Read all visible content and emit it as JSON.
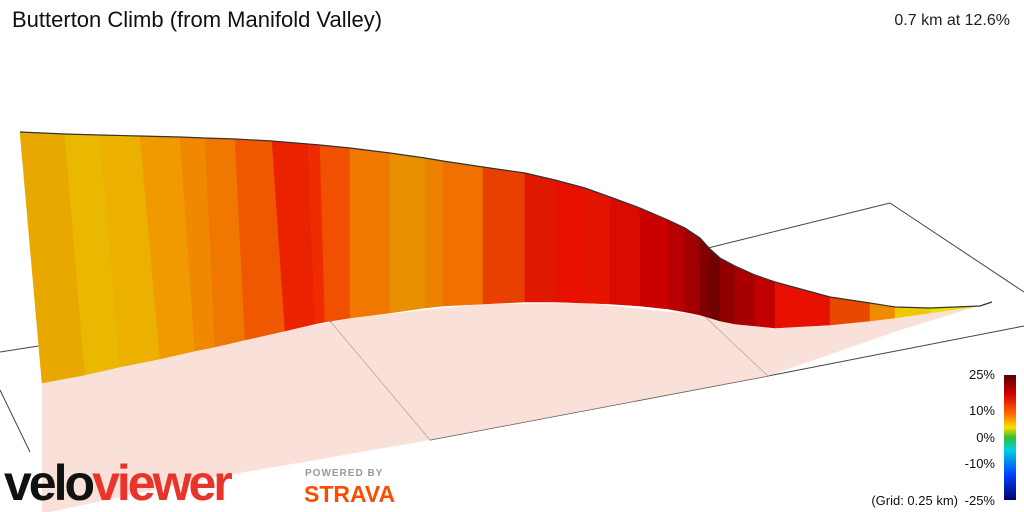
{
  "header": {
    "title": "Butterton Climb (from Manifold Valley)",
    "summary": "0.7 km at 12.6%"
  },
  "legend": {
    "labels": [
      "25%",
      "10%",
      "0%",
      "-10%",
      "-25%"
    ]
  },
  "grid_note": "(Grid: 0.25 km)",
  "logo": {
    "brand_left": "velo",
    "brand_right": "viewer",
    "powered_by": "POWERED BY",
    "partner": "STRAVA"
  }
}
